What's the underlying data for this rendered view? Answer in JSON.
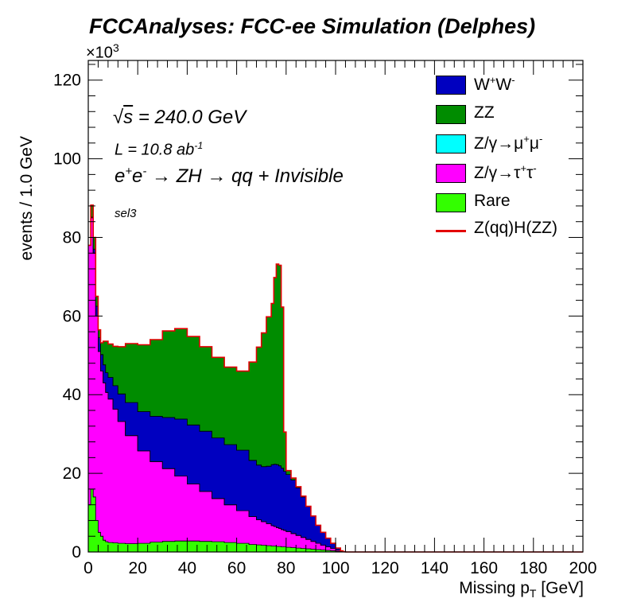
{
  "chart_data": {
    "type": "area",
    "title": "FCCAnalyses: FCC-ee Simulation (Delphes)",
    "xlabel": "Missing p_T [GeV]",
    "ylabel": "events / 1.0 GeV",
    "y_multiplier": "×10^3",
    "xlim": [
      0,
      200
    ],
    "ylim": [
      0,
      125000
    ],
    "x_ticks": [
      0,
      20,
      40,
      60,
      80,
      100,
      120,
      140,
      160,
      180,
      200
    ],
    "y_ticks": [
      0,
      20,
      40,
      60,
      80,
      100,
      120
    ],
    "stacked": true,
    "grid": false,
    "legend_position": "top-right",
    "annotations": {
      "sqrt_s": "= 240.0 GeV",
      "lumi": "L = 10.8 ab",
      "lumi_exp": "-1",
      "process": "e+e- → ZH → qq + Invisible",
      "selection": "sel3"
    },
    "x": [
      0,
      1,
      2,
      3,
      4,
      5,
      6,
      7,
      8,
      10,
      12,
      15,
      20,
      25,
      30,
      35,
      40,
      45,
      50,
      55,
      60,
      65,
      68,
      70,
      72,
      74,
      75,
      76,
      77,
      78,
      79,
      80,
      82,
      84,
      86,
      88,
      90,
      92,
      94,
      96,
      98,
      100,
      102,
      103,
      104,
      105,
      110,
      150,
      200
    ],
    "series": [
      {
        "name": "Rare",
        "color": "#33ff00",
        "values": [
          12000,
          16000,
          14000,
          8000,
          5000,
          4000,
          3000,
          2600,
          2400,
          2300,
          2200,
          2100,
          2200,
          2500,
          2700,
          2800,
          2800,
          2700,
          2600,
          2400,
          2200,
          1900,
          1800,
          1700,
          1600,
          1500,
          1500,
          1400,
          1400,
          1300,
          1300,
          1200,
          1100,
          1000,
          900,
          800,
          700,
          600,
          500,
          400,
          300,
          200,
          100,
          50,
          0,
          0,
          0,
          0,
          0
        ]
      },
      {
        "name": "Z/γ→τ+τ-",
        "color": "#ff00ff",
        "values": [
          66000,
          69000,
          62000,
          52000,
          46000,
          42000,
          40000,
          38000,
          36500,
          34000,
          31000,
          27500,
          23500,
          20500,
          18500,
          16500,
          14500,
          12700,
          11000,
          9600,
          8300,
          7100,
          6400,
          6000,
          5600,
          5200,
          5000,
          4800,
          4600,
          4400,
          4200,
          4000,
          3600,
          3200,
          2800,
          2400,
          2000,
          1600,
          1200,
          900,
          600,
          300,
          100,
          50,
          0,
          0,
          0,
          0,
          0
        ]
      },
      {
        "name": "Z/γ→μ+μ-",
        "color": "#00ffff",
        "values": [
          0,
          0,
          0,
          0,
          0,
          0,
          0,
          0,
          0,
          0,
          0,
          0,
          0,
          0,
          0,
          0,
          0,
          0,
          0,
          0,
          0,
          0,
          0,
          0,
          0,
          0,
          0,
          0,
          0,
          0,
          0,
          0,
          0,
          0,
          0,
          0,
          0,
          0,
          0,
          0,
          0,
          0,
          0,
          0,
          0,
          0,
          0,
          0,
          0
        ]
      },
      {
        "name": "W+W-",
        "color": "#0000c0",
        "values": [
          0,
          200,
          1000,
          2500,
          3500,
          4200,
          4600,
          5000,
          5500,
          6000,
          7000,
          8400,
          10000,
          11500,
          13000,
          14500,
          15000,
          15300,
          15400,
          15300,
          15400,
          14300,
          13900,
          14000,
          14600,
          15500,
          15800,
          16000,
          15900,
          15600,
          15000,
          14500,
          13600,
          12100,
          10300,
          8300,
          6400,
          4600,
          3300,
          2200,
          1300,
          500,
          100,
          0,
          0,
          0,
          0,
          0,
          0
        ]
      },
      {
        "name": "ZZ",
        "color": "#008c00",
        "values": [
          0,
          3000,
          3000,
          2500,
          2000,
          3000,
          6000,
          8000,
          8500,
          10000,
          12000,
          15000,
          17000,
          19500,
          22000,
          23000,
          22500,
          21500,
          20500,
          19700,
          20100,
          25000,
          30000,
          34000,
          38000,
          41000,
          47500,
          51000,
          51000,
          41000,
          10000,
          1000,
          500,
          300,
          200,
          100,
          50,
          0,
          0,
          0,
          0,
          0,
          0,
          0,
          0,
          0,
          0,
          0,
          0
        ]
      },
      {
        "name": "Z(qq)H(ZZ)",
        "color": "#e30000",
        "style": "line",
        "values": [
          0,
          0,
          0,
          0,
          0,
          0,
          0,
          0,
          0,
          0,
          0,
          0,
          0,
          0,
          0,
          0,
          0,
          0,
          0,
          0,
          0,
          0,
          0,
          0,
          0,
          0,
          0,
          0,
          0,
          0,
          0,
          0,
          0,
          0,
          0,
          0,
          0,
          0,
          0,
          0,
          0,
          0,
          0,
          0,
          0,
          0,
          0,
          0,
          0
        ]
      }
    ]
  },
  "legend": [
    {
      "label": "W",
      "sup1": "+",
      "label2": "W",
      "sup2": "-",
      "color": "#0000c0"
    },
    {
      "label": "ZZ",
      "color": "#008c00"
    },
    {
      "label": "Z/γ→μ",
      "sup1": "+",
      "label2": "μ",
      "sup2": "-",
      "color": "#00ffff"
    },
    {
      "label": "Z/γ→τ",
      "sup1": "+",
      "label2": "τ",
      "sup2": "-",
      "color": "#ff00ff"
    },
    {
      "label": "Rare",
      "color": "#33ff00"
    },
    {
      "label": "Z(qq)H(ZZ)",
      "color": "#e30000"
    }
  ]
}
